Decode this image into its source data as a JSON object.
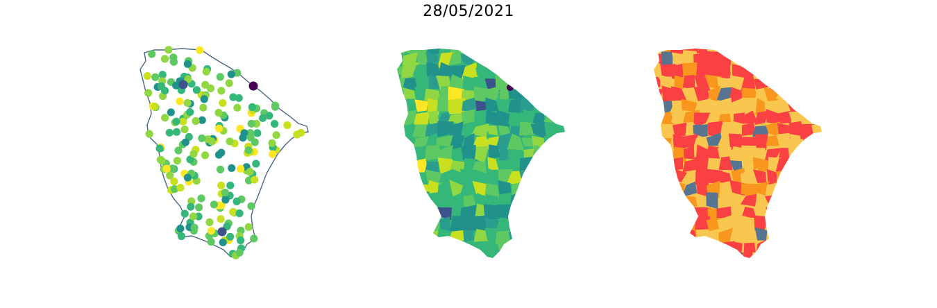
{
  "title": "28/05/2021",
  "colors": {
    "viridis": [
      "#440154",
      "#3b528b",
      "#21918c",
      "#2a9d8f",
      "#35b779",
      "#5ec962",
      "#90d743",
      "#c8e020",
      "#fde725"
    ],
    "outline": "#4a6580",
    "categorical": [
      "#f94144",
      "#f8961e",
      "#f9c74f",
      "#577590"
    ]
  },
  "panels": [
    {
      "type": "point-map",
      "name": "stations-point-map"
    },
    {
      "type": "choropleth",
      "name": "continuous-choropleth-map"
    },
    {
      "type": "choropleth",
      "name": "categorical-choropleth-map"
    }
  ]
}
